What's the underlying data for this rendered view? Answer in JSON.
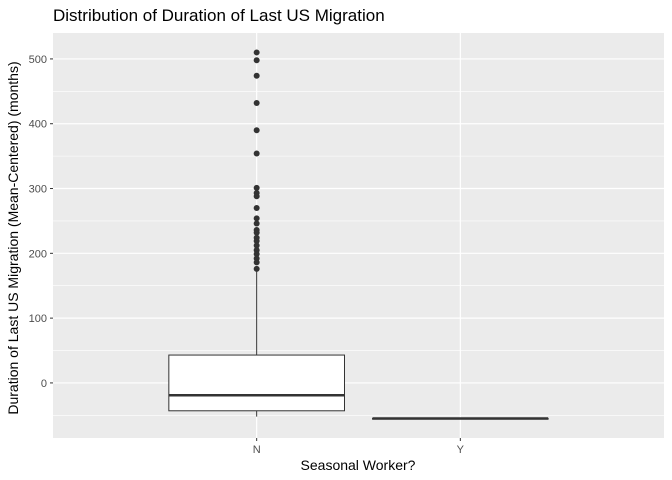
{
  "chart_data": {
    "type": "box",
    "title": "Distribution of Duration of Last US Migration",
    "xlabel": "Seasonal Worker?",
    "ylabel": "Duration of Last US Migration (Mean-Centered) (months)",
    "categories": [
      "N",
      "Y"
    ],
    "ylim": [
      -85,
      540
    ],
    "yticks": [
      0,
      100,
      200,
      300,
      400,
      500
    ],
    "grid": true,
    "boxes": [
      {
        "category": "N",
        "whisker_low": -52,
        "q1": -43,
        "median": -19,
        "q3": 43,
        "whisker_high": 172,
        "outliers": [
          510,
          498,
          474,
          432,
          390,
          354,
          301,
          293,
          288,
          270,
          254,
          246,
          236,
          232,
          224,
          219,
          212,
          205,
          199,
          192,
          186,
          176
        ]
      },
      {
        "category": "Y",
        "whisker_low": -55,
        "q1": -55,
        "median": -55,
        "q3": -55,
        "whisker_high": -55,
        "outliers": []
      }
    ],
    "colors": {
      "panel": "#ebebeb",
      "grid_major": "#ffffff",
      "box_fill": "#ffffff",
      "box_line": "#333333",
      "point": "#333333"
    }
  }
}
